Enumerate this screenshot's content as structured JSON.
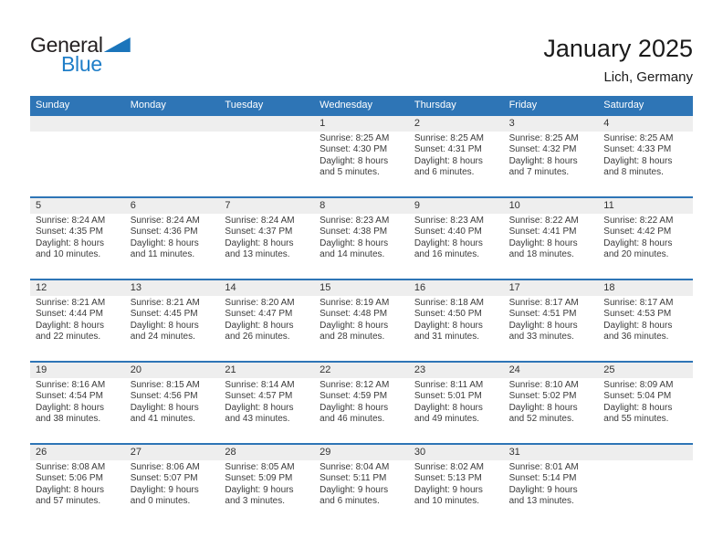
{
  "logo": {
    "general": "General",
    "blue": "Blue"
  },
  "header": {
    "title": "January 2025",
    "location": "Lich, Germany"
  },
  "weekdays": [
    "Sunday",
    "Monday",
    "Tuesday",
    "Wednesday",
    "Thursday",
    "Friday",
    "Saturday"
  ],
  "labels": {
    "sunrise": "Sunrise:",
    "sunset": "Sunset:",
    "daylight": "Daylight:"
  },
  "colors": {
    "header_blue": "#2e75b6",
    "week_divider_blue": "#2e75b6",
    "day_number_strip_gray": "#eeeeee",
    "logo_text_blue": "#1f7ec8",
    "logo_triangle_blue": "#1b75bb",
    "body_text": "#3b3b3b"
  },
  "weeks": [
    [
      null,
      null,
      null,
      {
        "day": "1",
        "sunrise": "Sunrise: 8:25 AM",
        "sunset": "Sunset: 4:30 PM",
        "daylight": "Daylight: 8 hours and 5 minutes."
      },
      {
        "day": "2",
        "sunrise": "Sunrise: 8:25 AM",
        "sunset": "Sunset: 4:31 PM",
        "daylight": "Daylight: 8 hours and 6 minutes."
      },
      {
        "day": "3",
        "sunrise": "Sunrise: 8:25 AM",
        "sunset": "Sunset: 4:32 PM",
        "daylight": "Daylight: 8 hours and 7 minutes."
      },
      {
        "day": "4",
        "sunrise": "Sunrise: 8:25 AM",
        "sunset": "Sunset: 4:33 PM",
        "daylight": "Daylight: 8 hours and 8 minutes."
      }
    ],
    [
      {
        "day": "5",
        "sunrise": "Sunrise: 8:24 AM",
        "sunset": "Sunset: 4:35 PM",
        "daylight": "Daylight: 8 hours and 10 minutes."
      },
      {
        "day": "6",
        "sunrise": "Sunrise: 8:24 AM",
        "sunset": "Sunset: 4:36 PM",
        "daylight": "Daylight: 8 hours and 11 minutes."
      },
      {
        "day": "7",
        "sunrise": "Sunrise: 8:24 AM",
        "sunset": "Sunset: 4:37 PM",
        "daylight": "Daylight: 8 hours and 13 minutes."
      },
      {
        "day": "8",
        "sunrise": "Sunrise: 8:23 AM",
        "sunset": "Sunset: 4:38 PM",
        "daylight": "Daylight: 8 hours and 14 minutes."
      },
      {
        "day": "9",
        "sunrise": "Sunrise: 8:23 AM",
        "sunset": "Sunset: 4:40 PM",
        "daylight": "Daylight: 8 hours and 16 minutes."
      },
      {
        "day": "10",
        "sunrise": "Sunrise: 8:22 AM",
        "sunset": "Sunset: 4:41 PM",
        "daylight": "Daylight: 8 hours and 18 minutes."
      },
      {
        "day": "11",
        "sunrise": "Sunrise: 8:22 AM",
        "sunset": "Sunset: 4:42 PM",
        "daylight": "Daylight: 8 hours and 20 minutes."
      }
    ],
    [
      {
        "day": "12",
        "sunrise": "Sunrise: 8:21 AM",
        "sunset": "Sunset: 4:44 PM",
        "daylight": "Daylight: 8 hours and 22 minutes."
      },
      {
        "day": "13",
        "sunrise": "Sunrise: 8:21 AM",
        "sunset": "Sunset: 4:45 PM",
        "daylight": "Daylight: 8 hours and 24 minutes."
      },
      {
        "day": "14",
        "sunrise": "Sunrise: 8:20 AM",
        "sunset": "Sunset: 4:47 PM",
        "daylight": "Daylight: 8 hours and 26 minutes."
      },
      {
        "day": "15",
        "sunrise": "Sunrise: 8:19 AM",
        "sunset": "Sunset: 4:48 PM",
        "daylight": "Daylight: 8 hours and 28 minutes."
      },
      {
        "day": "16",
        "sunrise": "Sunrise: 8:18 AM",
        "sunset": "Sunset: 4:50 PM",
        "daylight": "Daylight: 8 hours and 31 minutes."
      },
      {
        "day": "17",
        "sunrise": "Sunrise: 8:17 AM",
        "sunset": "Sunset: 4:51 PM",
        "daylight": "Daylight: 8 hours and 33 minutes."
      },
      {
        "day": "18",
        "sunrise": "Sunrise: 8:17 AM",
        "sunset": "Sunset: 4:53 PM",
        "daylight": "Daylight: 8 hours and 36 minutes."
      }
    ],
    [
      {
        "day": "19",
        "sunrise": "Sunrise: 8:16 AM",
        "sunset": "Sunset: 4:54 PM",
        "daylight": "Daylight: 8 hours and 38 minutes."
      },
      {
        "day": "20",
        "sunrise": "Sunrise: 8:15 AM",
        "sunset": "Sunset: 4:56 PM",
        "daylight": "Daylight: 8 hours and 41 minutes."
      },
      {
        "day": "21",
        "sunrise": "Sunrise: 8:14 AM",
        "sunset": "Sunset: 4:57 PM",
        "daylight": "Daylight: 8 hours and 43 minutes."
      },
      {
        "day": "22",
        "sunrise": "Sunrise: 8:12 AM",
        "sunset": "Sunset: 4:59 PM",
        "daylight": "Daylight: 8 hours and 46 minutes."
      },
      {
        "day": "23",
        "sunrise": "Sunrise: 8:11 AM",
        "sunset": "Sunset: 5:01 PM",
        "daylight": "Daylight: 8 hours and 49 minutes."
      },
      {
        "day": "24",
        "sunrise": "Sunrise: 8:10 AM",
        "sunset": "Sunset: 5:02 PM",
        "daylight": "Daylight: 8 hours and 52 minutes."
      },
      {
        "day": "25",
        "sunrise": "Sunrise: 8:09 AM",
        "sunset": "Sunset: 5:04 PM",
        "daylight": "Daylight: 8 hours and 55 minutes."
      }
    ],
    [
      {
        "day": "26",
        "sunrise": "Sunrise: 8:08 AM",
        "sunset": "Sunset: 5:06 PM",
        "daylight": "Daylight: 8 hours and 57 minutes."
      },
      {
        "day": "27",
        "sunrise": "Sunrise: 8:06 AM",
        "sunset": "Sunset: 5:07 PM",
        "daylight": "Daylight: 9 hours and 0 minutes."
      },
      {
        "day": "28",
        "sunrise": "Sunrise: 8:05 AM",
        "sunset": "Sunset: 5:09 PM",
        "daylight": "Daylight: 9 hours and 3 minutes."
      },
      {
        "day": "29",
        "sunrise": "Sunrise: 8:04 AM",
        "sunset": "Sunset: 5:11 PM",
        "daylight": "Daylight: 9 hours and 6 minutes."
      },
      {
        "day": "30",
        "sunrise": "Sunrise: 8:02 AM",
        "sunset": "Sunset: 5:13 PM",
        "daylight": "Daylight: 9 hours and 10 minutes."
      },
      {
        "day": "31",
        "sunrise": "Sunrise: 8:01 AM",
        "sunset": "Sunset: 5:14 PM",
        "daylight": "Daylight: 9 hours and 13 minutes."
      },
      null
    ]
  ]
}
